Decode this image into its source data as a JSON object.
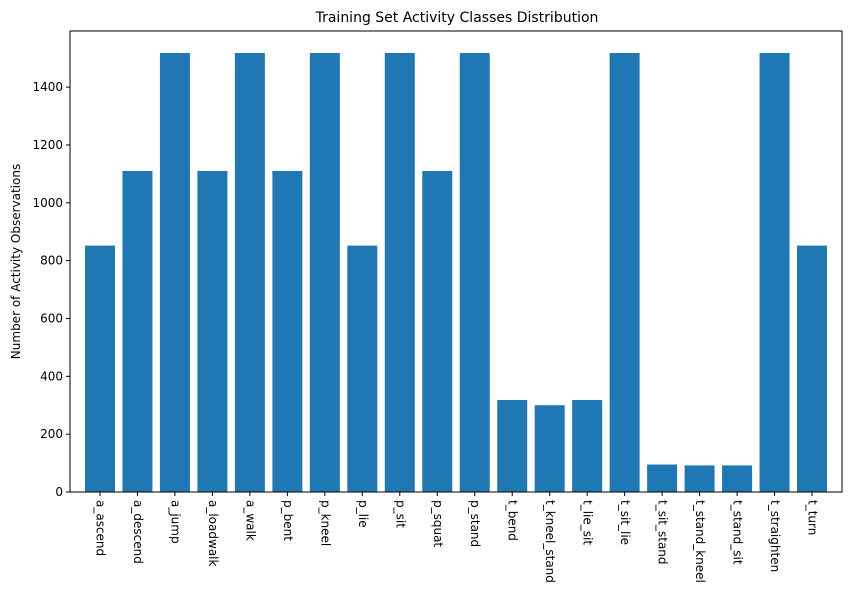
{
  "chart_data": {
    "type": "bar",
    "title": "Training Set Activity Classes Distribution",
    "xlabel": "",
    "ylabel": "Number of Activity Observations",
    "categories": [
      "a_ascend",
      "a_descend",
      "a_jump",
      "a_loadwalk",
      "a_walk",
      "p_bent",
      "p_kneel",
      "p_lie",
      "p_sit",
      "p_squat",
      "p_stand",
      "t_bend",
      "t_kneel_stand",
      "t_lie_sit",
      "t_sit_lie",
      "t_sit_stand",
      "t_stand_kneel",
      "t_stand_sit",
      "t_straighten",
      "t_turn"
    ],
    "values": [
      852,
      1110,
      1518,
      1110,
      1518,
      1110,
      1518,
      852,
      1518,
      1110,
      1518,
      318,
      300,
      318,
      1518,
      95,
      92,
      92,
      1518,
      852
    ],
    "ylim": [
      0,
      1594
    ],
    "yticks": [
      0,
      200,
      400,
      600,
      800,
      1000,
      1200,
      1400
    ],
    "ytick_labels": [
      "0",
      "200",
      "400",
      "600",
      "800",
      "1000",
      "1200",
      "1400"
    ],
    "bar_color": "#1f77b4",
    "grid": false
  }
}
